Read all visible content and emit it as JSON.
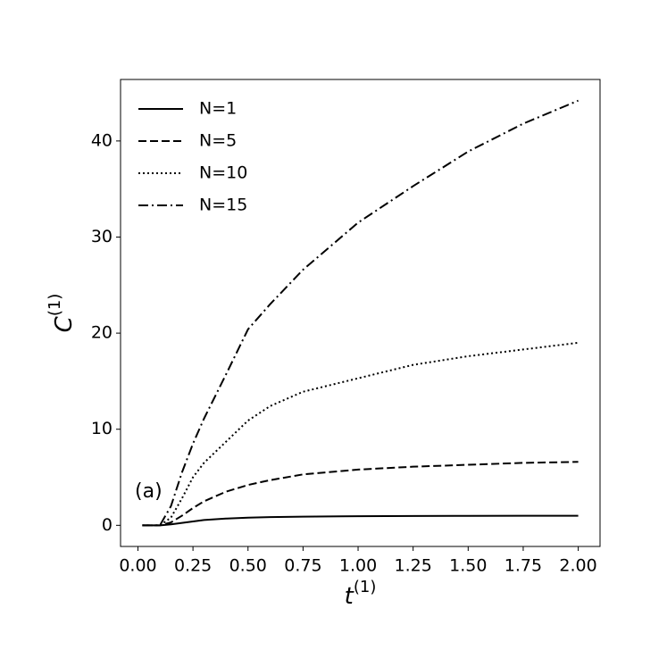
{
  "chart_data": {
    "type": "line",
    "annotation": "(a)",
    "xlabel": "t",
    "xlabel_sup": "(1)",
    "ylabel": "C",
    "ylabel_sup": "(1)",
    "x": [
      0.02,
      0.1,
      0.15,
      0.2,
      0.25,
      0.3,
      0.4,
      0.5,
      0.6,
      0.75,
      1.0,
      1.25,
      1.5,
      1.75,
      2.0
    ],
    "series": [
      {
        "name": "N=1",
        "color": "#000000",
        "dash": "solid",
        "values": [
          0,
          0,
          0.1,
          0.25,
          0.4,
          0.55,
          0.7,
          0.8,
          0.85,
          0.9,
          0.95,
          0.97,
          0.98,
          0.99,
          1.0
        ]
      },
      {
        "name": "N=5",
        "color": "#000000",
        "dash": "dashed",
        "values": [
          0,
          0,
          0.3,
          1.0,
          1.8,
          2.5,
          3.5,
          4.2,
          4.7,
          5.3,
          5.8,
          6.1,
          6.3,
          6.5,
          6.6
        ]
      },
      {
        "name": "N=10",
        "color": "#000000",
        "dash": "dotted",
        "values": [
          0,
          0,
          0.8,
          2.8,
          5.0,
          6.5,
          8.7,
          10.9,
          12.4,
          13.9,
          15.3,
          16.7,
          17.6,
          18.3,
          19.0
        ]
      },
      {
        "name": "N=15",
        "color": "#000000",
        "dash": "dashdot",
        "values": [
          0,
          0,
          2.0,
          5.5,
          8.5,
          11.1,
          15.7,
          20.4,
          23.0,
          26.6,
          31.5,
          35.3,
          38.9,
          41.8,
          44.2
        ]
      }
    ],
    "xlim": [
      -0.079,
      2.099
    ],
    "ylim": [
      -2.2,
      46.4
    ],
    "xticks": [
      {
        "value": 0,
        "label": "0.00"
      },
      {
        "value": 0.25,
        "label": "0.25"
      },
      {
        "value": 0.5,
        "label": "0.50"
      },
      {
        "value": 0.75,
        "label": "0.75"
      },
      {
        "value": 1,
        "label": "1.00"
      },
      {
        "value": 1.25,
        "label": "1.25"
      },
      {
        "value": 1.5,
        "label": "1.50"
      },
      {
        "value": 1.75,
        "label": "1.75"
      },
      {
        "value": 2,
        "label": "2.00"
      }
    ],
    "yticks": [
      0,
      10,
      20,
      30,
      40
    ],
    "legend": "upper left",
    "grid": false
  }
}
